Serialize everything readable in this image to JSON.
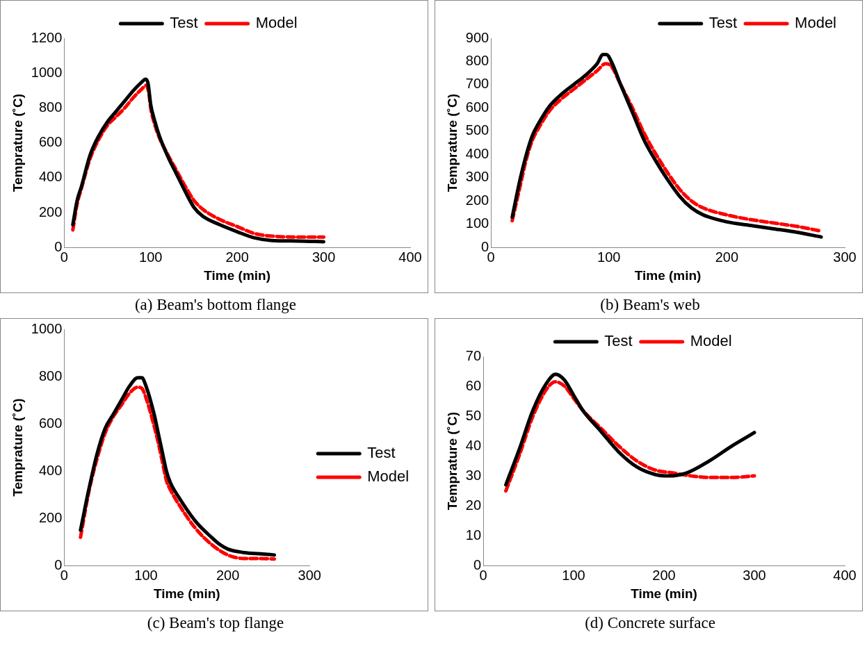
{
  "chart_data": [
    {
      "type": "line",
      "title": "(a)  Beam's bottom flange",
      "xlabel": "Time (min)",
      "ylabel": "Temprature (˚C)",
      "xlim": [
        0,
        400
      ],
      "xticks": [
        0,
        100,
        200,
        300,
        400
      ],
      "ylim": [
        0,
        1200
      ],
      "yticks": [
        0,
        200,
        400,
        600,
        800,
        1000,
        1200
      ],
      "grid": false,
      "legend": "top",
      "marker": "none",
      "series": [
        {
          "name": "Test",
          "color": "#000000",
          "line_style": "solid",
          "x": [
            10,
            15,
            20,
            30,
            40,
            50,
            60,
            70,
            80,
            90,
            94,
            97,
            100,
            105,
            110,
            120,
            130,
            140,
            150,
            160,
            180,
            200,
            220,
            240,
            270,
            300
          ],
          "values": [
            130,
            270,
            350,
            530,
            640,
            720,
            780,
            840,
            900,
            950,
            965,
            940,
            820,
            720,
            640,
            520,
            420,
            320,
            230,
            180,
            130,
            90,
            55,
            40,
            37,
            33
          ]
        },
        {
          "name": "Model",
          "color": "#ff0000",
          "line_style": "dashed",
          "x": [
            10,
            15,
            20,
            30,
            40,
            50,
            60,
            70,
            80,
            90,
            95,
            98,
            100,
            105,
            110,
            120,
            130,
            140,
            150,
            160,
            180,
            200,
            220,
            240,
            270,
            300
          ],
          "values": [
            100,
            250,
            340,
            510,
            620,
            700,
            750,
            800,
            860,
            910,
            930,
            880,
            800,
            700,
            630,
            530,
            440,
            350,
            270,
            220,
            160,
            120,
            80,
            65,
            60,
            60
          ]
        }
      ]
    },
    {
      "type": "line",
      "title": "(b)  Beam's web",
      "xlabel": "Time (min)",
      "ylabel": "Temprature (˚C)",
      "xlim": [
        0,
        300
      ],
      "xticks": [
        0,
        100,
        200,
        300
      ],
      "ylim": [
        0,
        900
      ],
      "yticks": [
        0,
        100,
        200,
        300,
        400,
        500,
        600,
        700,
        800,
        900
      ],
      "grid": false,
      "legend": "top right",
      "marker": "none",
      "series": [
        {
          "name": "Test",
          "color": "#000000",
          "line_style": "solid",
          "x": [
            18,
            25,
            30,
            35,
            40,
            50,
            60,
            70,
            80,
            90,
            95,
            98,
            102,
            110,
            120,
            130,
            140,
            150,
            160,
            170,
            180,
            200,
            220,
            240,
            260,
            280
          ],
          "values": [
            130,
            300,
            400,
            480,
            530,
            610,
            660,
            700,
            740,
            790,
            830,
            830,
            800,
            700,
            580,
            460,
            370,
            290,
            220,
            170,
            140,
            110,
            95,
            80,
            65,
            45
          ]
        },
        {
          "name": "Model",
          "color": "#ff0000",
          "line_style": "dashed",
          "x": [
            18,
            25,
            30,
            35,
            40,
            50,
            60,
            70,
            80,
            90,
            97,
            102,
            110,
            120,
            130,
            140,
            150,
            160,
            170,
            180,
            200,
            220,
            240,
            260,
            280
          ],
          "values": [
            115,
            270,
            380,
            460,
            510,
            590,
            640,
            680,
            720,
            760,
            790,
            780,
            700,
            600,
            490,
            400,
            320,
            250,
            200,
            170,
            140,
            120,
            105,
            90,
            70
          ]
        }
      ]
    },
    {
      "type": "line",
      "title": "(c)  Beam's top flange",
      "xlabel": "Time (min)",
      "ylabel": "Temprature (˚C)",
      "xlim": [
        0,
        300
      ],
      "xticks": [
        0,
        100,
        200,
        300
      ],
      "ylim": [
        0,
        1000
      ],
      "yticks": [
        0,
        200,
        400,
        600,
        800,
        1000
      ],
      "grid": false,
      "legend": "right",
      "marker": "none",
      "series": [
        {
          "name": "Test",
          "color": "#000000",
          "line_style": "solid",
          "x": [
            20,
            30,
            40,
            50,
            60,
            70,
            80,
            90,
            95,
            100,
            110,
            115,
            120,
            125,
            130,
            140,
            160,
            180,
            190,
            200,
            220,
            240,
            257
          ],
          "values": [
            150,
            320,
            470,
            580,
            640,
            700,
            760,
            795,
            795,
            760,
            640,
            560,
            480,
            400,
            350,
            290,
            190,
            120,
            90,
            70,
            55,
            50,
            45
          ]
        },
        {
          "name": "Model",
          "color": "#ff0000",
          "line_style": "dashed",
          "x": [
            20,
            30,
            40,
            50,
            60,
            70,
            80,
            90,
            95,
            100,
            110,
            115,
            120,
            125,
            130,
            140,
            160,
            180,
            200,
            220,
            240,
            257
          ],
          "values": [
            120,
            310,
            450,
            560,
            630,
            680,
            730,
            755,
            750,
            710,
            590,
            520,
            440,
            360,
            320,
            260,
            160,
            90,
            45,
            30,
            30,
            28
          ]
        }
      ]
    },
    {
      "type": "line",
      "title": "(d)  Concrete surface",
      "xlabel": "Time (min)",
      "ylabel": "Temprature (˚C)",
      "xlim": [
        0,
        400
      ],
      "xticks": [
        0,
        100,
        200,
        300,
        400
      ],
      "ylim": [
        0,
        70
      ],
      "yticks": [
        0,
        10,
        20,
        30,
        40,
        50,
        60,
        70
      ],
      "grid": false,
      "legend": "top",
      "marker": "none",
      "series": [
        {
          "name": "Test",
          "color": "#000000",
          "line_style": "solid",
          "x": [
            25,
            40,
            55,
            70,
            80,
            90,
            100,
            110,
            130,
            150,
            170,
            190,
            205,
            225,
            250,
            275,
            300
          ],
          "values": [
            27,
            39,
            52,
            61,
            64,
            62,
            57,
            52,
            45,
            38,
            33,
            30.5,
            30,
            31,
            35,
            40,
            44.5
          ]
        },
        {
          "name": "Model",
          "color": "#ff0000",
          "line_style": "dashed",
          "x": [
            25,
            40,
            55,
            70,
            80,
            90,
            100,
            110,
            130,
            150,
            170,
            190,
            210,
            230,
            250,
            275,
            300
          ],
          "values": [
            25,
            37,
            50,
            59,
            61.5,
            60,
            56,
            52,
            46,
            40,
            35,
            32,
            31,
            30,
            29.5,
            29.5,
            30
          ]
        }
      ]
    }
  ]
}
